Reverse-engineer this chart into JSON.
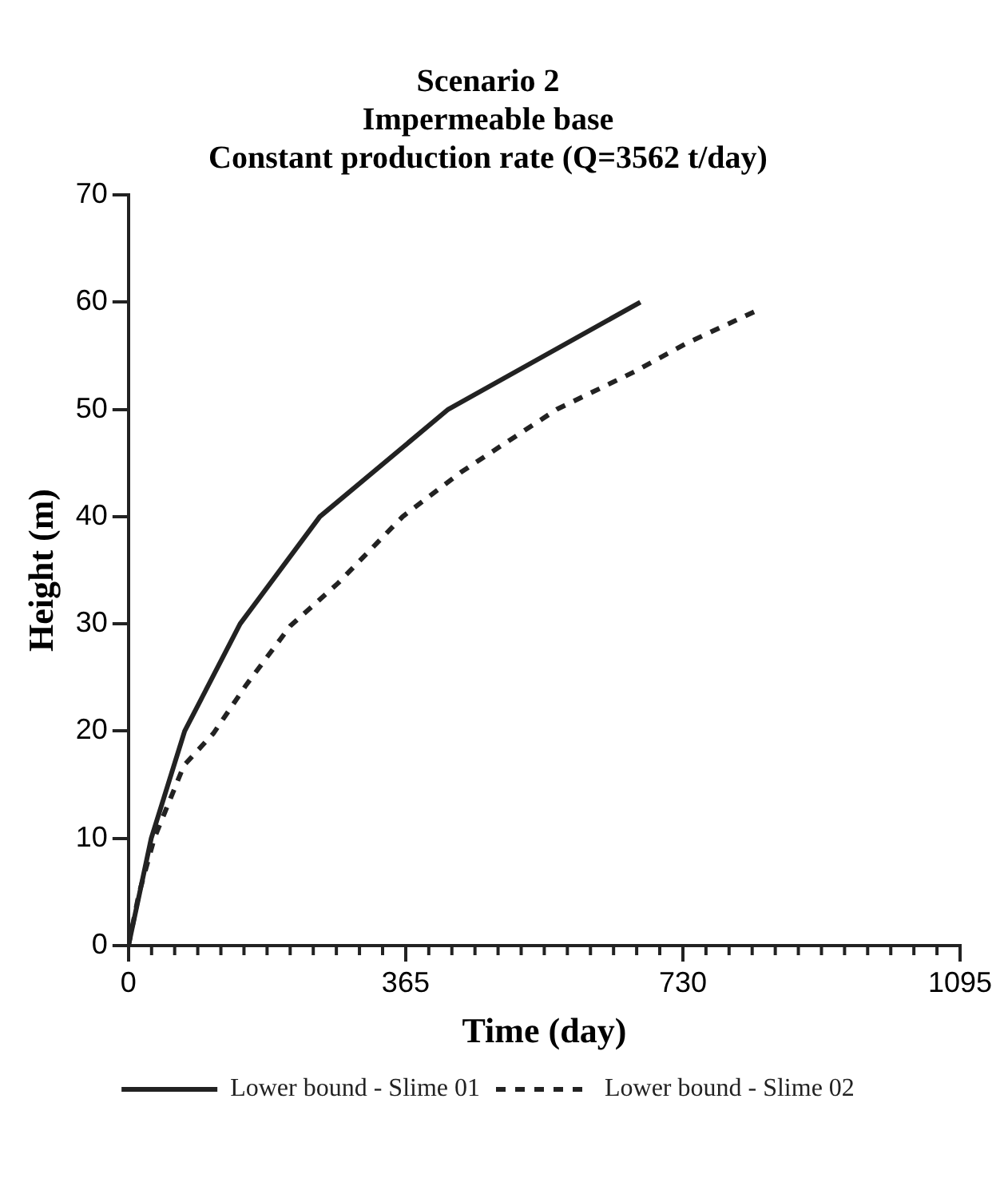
{
  "chart_data": {
    "type": "line",
    "title": [
      "Scenario 2",
      "Impermeable base",
      "Constant production rate (Q=3562 t/day)"
    ],
    "xlabel": "Time (day)",
    "ylabel": "Height (m)",
    "xlim": [
      0,
      1095
    ],
    "xticks": [
      0,
      365,
      730,
      1095
    ],
    "ylim": [
      0,
      70
    ],
    "yticks": [
      0,
      10,
      20,
      30,
      40,
      50,
      60,
      70
    ],
    "grid": false,
    "legend": "bottom",
    "marker": "none",
    "series": [
      {
        "name": "Lower bound - Slime 01",
        "color": "#222222",
        "line_style": "solid",
        "x": [
          0,
          30,
          74,
          147,
          252,
          421,
          674
        ],
        "values": [
          0,
          10,
          20,
          30,
          40,
          50,
          60
        ]
      },
      {
        "name": "Lower bound - Slime 02",
        "color": "#222222",
        "line_style": "dashed",
        "x": [
          0,
          14,
          34,
          73,
          112,
          155,
          213,
          276,
          361,
          439,
          564,
          666,
          736,
          830
        ],
        "values": [
          0,
          4.9,
          10,
          16.8,
          19.8,
          24.3,
          29.8,
          33.8,
          40,
          44.2,
          50,
          53.5,
          56.2,
          59.3
        ]
      }
    ]
  }
}
